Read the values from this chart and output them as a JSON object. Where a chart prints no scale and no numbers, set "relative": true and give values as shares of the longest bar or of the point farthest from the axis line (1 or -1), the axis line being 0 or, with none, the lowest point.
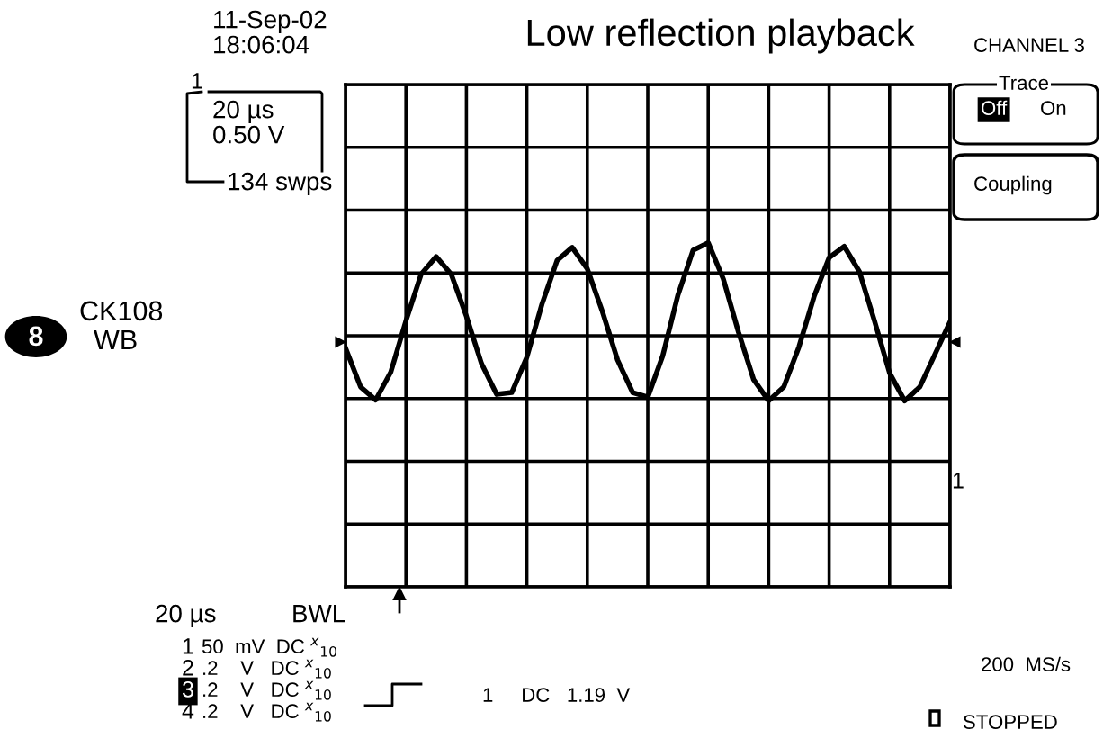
{
  "chart_data": {
    "type": "line",
    "title": "Low reflection playback",
    "relative": true,
    "grid": true,
    "legend": false,
    "marker": "none",
    "line_style": "solid",
    "categories": [
      null,
      null,
      null,
      null,
      null,
      null,
      null,
      null,
      null,
      null,
      null,
      null,
      null,
      null,
      null,
      null,
      null,
      null,
      null,
      null,
      null,
      null,
      null,
      null,
      null,
      null,
      null,
      null,
      null,
      null,
      null,
      null,
      null,
      null,
      null,
      null,
      null,
      null,
      null,
      null,
      null
    ],
    "series": [
      {
        "color": "#000000",
        "values": [
          -0.13,
          -0.55,
          -0.69,
          -0.39,
          0.16,
          0.66,
          0.85,
          0.66,
          0.21,
          -0.3,
          -0.63,
          -0.61,
          -0.23,
          0.34,
          0.81,
          0.95,
          0.72,
          0.26,
          -0.26,
          -0.61,
          -0.66,
          -0.21,
          0.44,
          0.92,
          1.0,
          0.61,
          0.04,
          -0.47,
          -0.7,
          -0.55,
          -0.12,
          0.42,
          0.84,
          0.96,
          0.69,
          0.16,
          -0.4,
          -0.7,
          -0.55,
          -0.2,
          0.15
        ]
      }
    ],
    "annotations": [
      "11-Sep-02",
      "18:06:04",
      "1",
      "20 µs",
      "0.50 V",
      "134 swps",
      "CHANNEL 3",
      "Trace",
      "Off",
      "On",
      "Coupling",
      "8",
      "CK108",
      "WB",
      "1",
      "20 µs",
      "BWL",
      "1",
      "50  mV  DC $^{x}$$_{10}$",
      "2",
      ".2    V   DC $^{x}$$_{10}$",
      "3",
      ".2    V   DC $^{x}$$_{10}$",
      "4",
      ".2    V   DC $^{x}$$_{10}$",
      "1     DC   1.19  V",
      "200  MS/s",
      "STOPPED"
    ]
  }
}
